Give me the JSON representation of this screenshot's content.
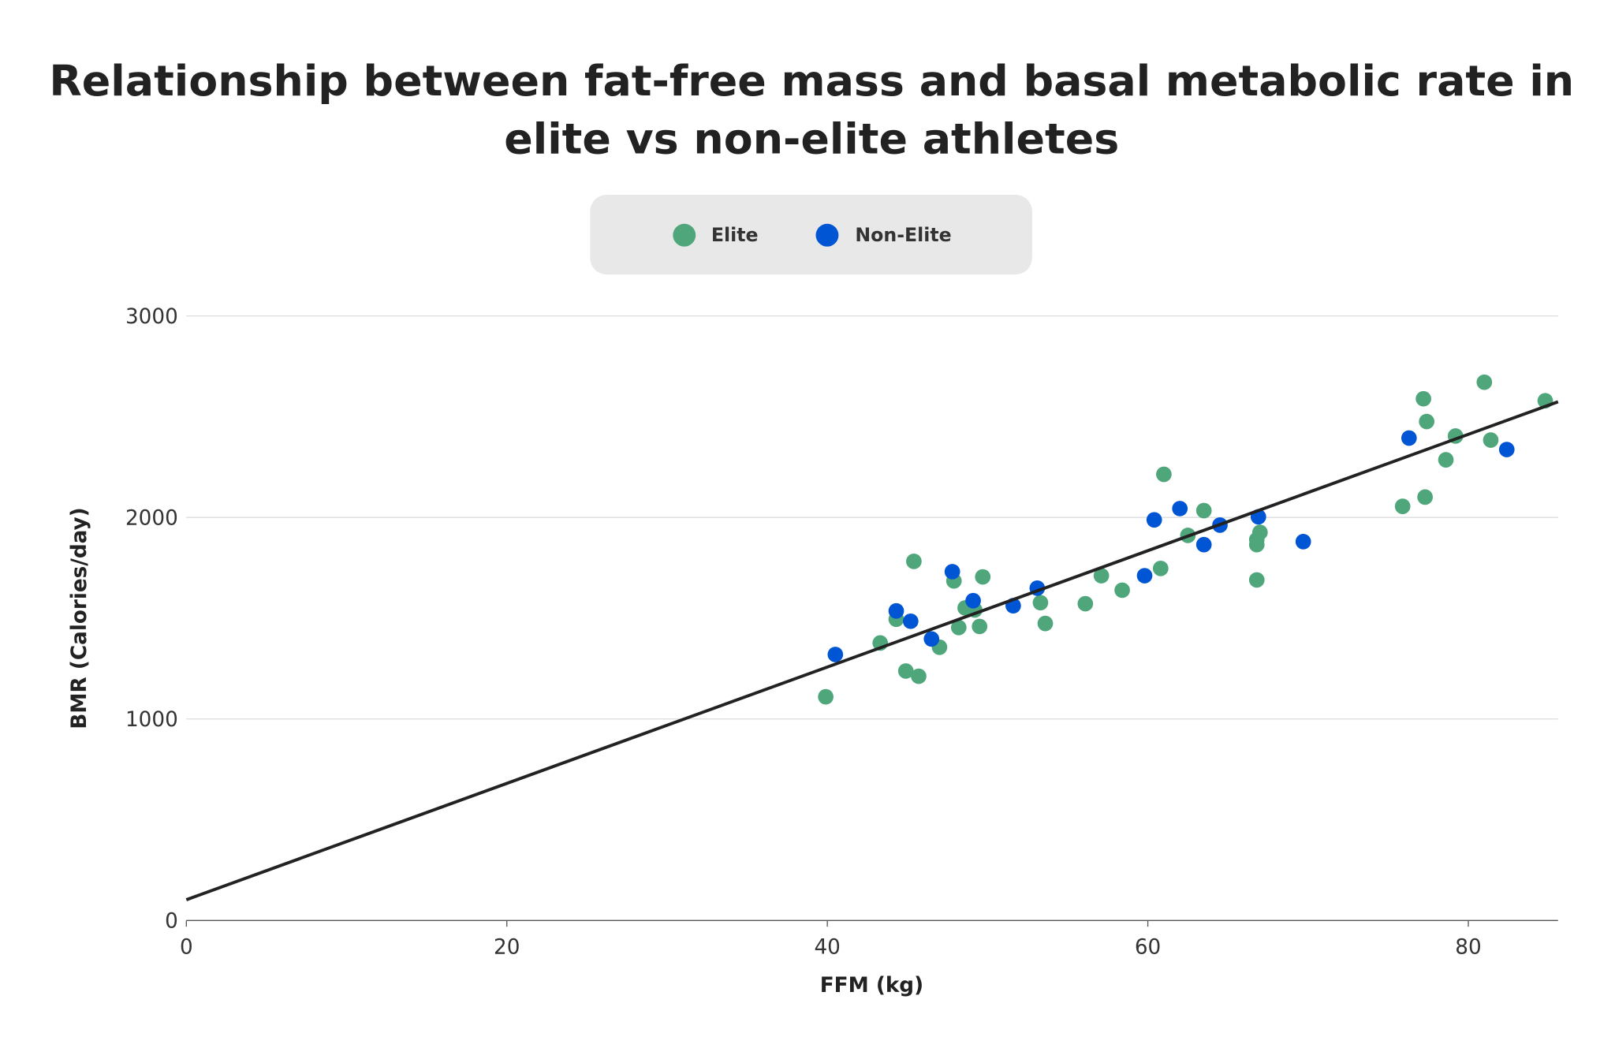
{
  "chart_data": {
    "type": "scatter",
    "title_lines": [
      "Relationship between fat-free mass and basal metabolic rate in",
      "elite vs non-elite athletes"
    ],
    "xlabel": "FFM (kg)",
    "ylabel": "BMR (Calories/day)",
    "xlim": [
      0,
      85.6
    ],
    "ylim": [
      0,
      3000
    ],
    "xticks": [
      0,
      20,
      40,
      60,
      80
    ],
    "yticks": [
      0,
      1000,
      2000,
      3000
    ],
    "grid": "horizontal",
    "legend_placement": "top-center",
    "trendline": {
      "x": [
        0,
        85.6
      ],
      "y": [
        103,
        2574
      ],
      "color": "#222222"
    },
    "series": [
      {
        "name": "Elite",
        "color": "#4ea67a",
        "points": [
          [
            39.9,
            1110
          ],
          [
            43.3,
            1377
          ],
          [
            44.3,
            1495
          ],
          [
            44.9,
            1238
          ],
          [
            45.4,
            1782
          ],
          [
            45.7,
            1212
          ],
          [
            47.0,
            1356
          ],
          [
            47.9,
            1685
          ],
          [
            48.2,
            1454
          ],
          [
            48.6,
            1551
          ],
          [
            49.2,
            1541
          ],
          [
            49.5,
            1459
          ],
          [
            49.7,
            1705
          ],
          [
            53.3,
            1577
          ],
          [
            53.6,
            1474
          ],
          [
            56.1,
            1572
          ],
          [
            57.1,
            1711
          ],
          [
            58.4,
            1639
          ],
          [
            60.8,
            1747
          ],
          [
            61.0,
            2214
          ],
          [
            62.5,
            1911
          ],
          [
            63.5,
            2034
          ],
          [
            66.8,
            1890
          ],
          [
            66.8,
            1865
          ],
          [
            67.0,
            1926
          ],
          [
            66.8,
            1690
          ],
          [
            75.9,
            2055
          ],
          [
            77.2,
            2589
          ],
          [
            77.3,
            2101
          ],
          [
            77.4,
            2476
          ],
          [
            78.6,
            2286
          ],
          [
            79.2,
            2404
          ],
          [
            81.0,
            2671
          ],
          [
            81.4,
            2384
          ],
          [
            84.8,
            2579
          ]
        ]
      },
      {
        "name": "Non-Elite",
        "color": "#0055d4",
        "points": [
          [
            40.5,
            1320
          ],
          [
            44.3,
            1536
          ],
          [
            45.2,
            1485
          ],
          [
            46.5,
            1397
          ],
          [
            47.8,
            1731
          ],
          [
            49.1,
            1587
          ],
          [
            51.6,
            1562
          ],
          [
            53.1,
            1649
          ],
          [
            59.8,
            1711
          ],
          [
            60.4,
            1988
          ],
          [
            62.0,
            2044
          ],
          [
            63.5,
            1865
          ],
          [
            64.5,
            1962
          ],
          [
            66.9,
            2003
          ],
          [
            69.7,
            1880
          ],
          [
            76.3,
            2394
          ],
          [
            82.4,
            2337
          ]
        ]
      }
    ]
  }
}
